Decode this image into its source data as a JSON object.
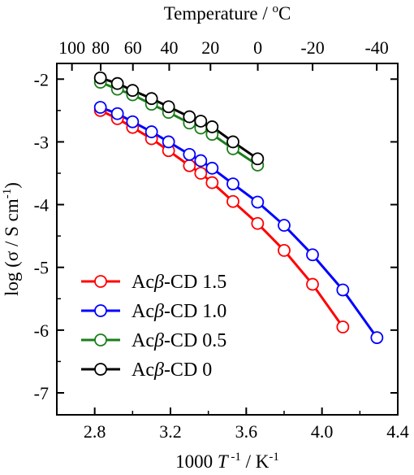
{
  "chart_data": {
    "type": "line",
    "xlabel_prefix": "1000 ",
    "xlabel_var": "T",
    "xlabel_sup": " -1",
    "xlabel_suffix": " / K",
    "xlabel_suffix_sup": "-1",
    "ylabel_main": "log (σ / S cm",
    "ylabel_sup": "-1",
    "ylabel_close": ")",
    "top_label_main": "Temperature / ",
    "top_label_sup": "o",
    "top_label_unit": "C",
    "xlim": [
      2.6,
      4.4
    ],
    "ylim": [
      -7.35,
      -1.75
    ],
    "x_ticks": [
      2.8,
      3.2,
      3.6,
      4.0,
      4.4
    ],
    "x_tick_labels": [
      "2.8",
      "3.2",
      "3.6",
      "4.0",
      "4.4"
    ],
    "y_ticks": [
      -7,
      -6,
      -5,
      -4,
      -3,
      -2
    ],
    "y_tick_labels": [
      "-7",
      "-6",
      "-5",
      "-4",
      "-3",
      "-2"
    ],
    "top_ticks_celsius": [
      100,
      80,
      60,
      40,
      20,
      0,
      -20,
      -40
    ],
    "top_tick_labels": [
      "100",
      "80",
      "60",
      "40",
      "20",
      "0",
      "-20",
      "-40"
    ],
    "legend_position": "bottom-left",
    "series": [
      {
        "name": "Acβ-CD 1.5",
        "name_prefix": "Ac",
        "name_italic": "β",
        "name_suffix": "-CD 1.5",
        "color": "#ff0000",
        "x": [
          2.83,
          2.92,
          3.0,
          3.1,
          3.19,
          3.3,
          3.36,
          3.42,
          3.53,
          3.66,
          3.8,
          3.95,
          4.11
        ],
        "y": [
          -2.5,
          -2.63,
          -2.77,
          -2.95,
          -3.14,
          -3.38,
          -3.5,
          -3.65,
          -3.95,
          -4.3,
          -4.73,
          -5.27,
          -5.95
        ]
      },
      {
        "name": "Acβ-CD 1.0",
        "name_prefix": "Ac",
        "name_italic": "β",
        "name_suffix": "-CD 1.0",
        "color": "#0000ff",
        "x": [
          2.83,
          2.92,
          3.0,
          3.1,
          3.19,
          3.3,
          3.36,
          3.42,
          3.53,
          3.66,
          3.8,
          3.95,
          4.11,
          4.29
        ],
        "y": [
          -2.45,
          -2.55,
          -2.68,
          -2.84,
          -3.0,
          -3.2,
          -3.3,
          -3.42,
          -3.67,
          -3.96,
          -4.33,
          -4.8,
          -5.36,
          -6.12
        ]
      },
      {
        "name": "Acβ-CD 0.5",
        "name_prefix": "Ac",
        "name_italic": "β",
        "name_suffix": "-CD 0.5",
        "color": "#1a7f1a",
        "x": [
          2.83,
          2.92,
          3.0,
          3.1,
          3.19,
          3.3,
          3.36,
          3.42,
          3.53,
          3.66
        ],
        "y": [
          -2.05,
          -2.16,
          -2.25,
          -2.4,
          -2.53,
          -2.7,
          -2.78,
          -2.88,
          -3.11,
          -3.37
        ]
      },
      {
        "name": "Acβ-CD 0",
        "name_prefix": "Ac",
        "name_italic": "β",
        "name_suffix": "-CD 0",
        "color": "#000000",
        "x": [
          2.83,
          2.92,
          3.0,
          3.1,
          3.19,
          3.3,
          3.36,
          3.42,
          3.53,
          3.66
        ],
        "y": [
          -1.98,
          -2.07,
          -2.18,
          -2.31,
          -2.44,
          -2.6,
          -2.67,
          -2.76,
          -3.0,
          -3.27
        ]
      }
    ]
  }
}
